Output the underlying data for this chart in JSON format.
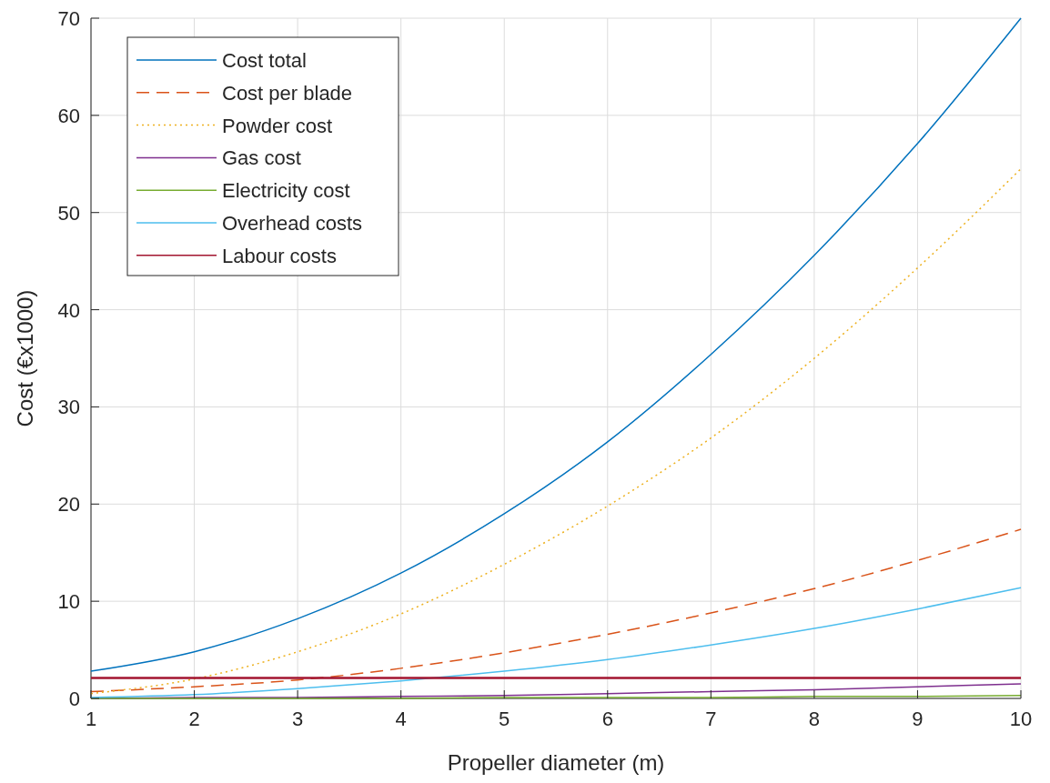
{
  "chart_data": {
    "type": "line",
    "xlabel": "Propeller diameter (m)",
    "ylabel": "Cost (€x1000)",
    "x": [
      1,
      2,
      3,
      4,
      5,
      6,
      7,
      8,
      9,
      10
    ],
    "xlim": [
      1,
      10
    ],
    "xticks": [
      1,
      2,
      3,
      4,
      5,
      6,
      7,
      8,
      9,
      10
    ],
    "ylim": [
      0,
      70
    ],
    "yticks": [
      0,
      10,
      20,
      30,
      40,
      50,
      60,
      70
    ],
    "grid": true,
    "legend": "top left",
    "series": [
      {
        "name": "Cost total",
        "color": "#0072bd",
        "line_style": "solid",
        "values": [
          2.8,
          4.8,
          8.2,
          12.9,
          19.0,
          26.4,
          35.4,
          45.6,
          57.1,
          70
        ]
      },
      {
        "name": "Cost per blade",
        "color": "#d95319",
        "line_style": "dashed",
        "values": [
          0.7,
          1.2,
          1.9,
          3.1,
          4.7,
          6.6,
          8.8,
          11.3,
          14.2,
          17.4
        ]
      },
      {
        "name": "Powder cost",
        "color": "#edb120",
        "line_style": "dotted",
        "values": [
          0.5,
          2.0,
          4.8,
          8.7,
          13.8,
          19.8,
          26.8,
          35,
          44.3,
          54.5
        ]
      },
      {
        "name": "Gas cost",
        "color": "#7e2f8e",
        "line_style": "solid",
        "values": [
          0,
          0.1,
          0.1,
          0.2,
          0.3,
          0.5,
          0.7,
          0.9,
          1.2,
          1.5
        ]
      },
      {
        "name": "Electricity cost",
        "color": "#77ac30",
        "line_style": "solid",
        "values": [
          0,
          0,
          0,
          0,
          0.1,
          0.1,
          0.1,
          0.2,
          0.2,
          0.3
        ]
      },
      {
        "name": "Overhead costs",
        "color": "#4dbeee",
        "line_style": "solid",
        "values": [
          0.1,
          0.4,
          1.0,
          1.8,
          2.8,
          4.0,
          5.5,
          7.2,
          9.2,
          11.4
        ]
      },
      {
        "name": "Labour costs",
        "color": "#a2142f",
        "line_style": "solid",
        "values": [
          2.1,
          2.1,
          2.1,
          2.1,
          2.1,
          2.1,
          2.1,
          2.1,
          2.1,
          2.1
        ]
      }
    ]
  }
}
